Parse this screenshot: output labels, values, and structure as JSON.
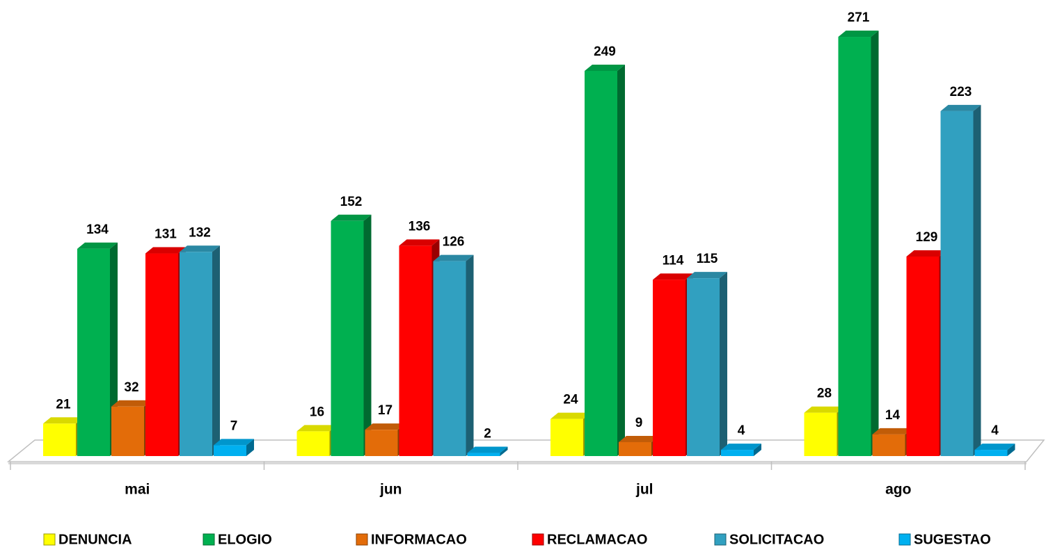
{
  "chart_data": {
    "type": "bar3d",
    "categories": [
      "mai",
      "jun",
      "jul",
      "ago"
    ],
    "series": [
      {
        "name": "DENUNCIA",
        "color": "#ffff00",
        "values": [
          21,
          16,
          24,
          28
        ]
      },
      {
        "name": "ELOGIO",
        "color": "#00b050",
        "values": [
          134,
          152,
          249,
          271
        ]
      },
      {
        "name": "INFORMACAO",
        "color": "#e36c09",
        "values": [
          32,
          17,
          9,
          14
        ]
      },
      {
        "name": "RECLAMACAO",
        "color": "#ff0000",
        "values": [
          131,
          136,
          114,
          129
        ]
      },
      {
        "name": "SOLICITACAO",
        "color": "#31a0c0",
        "values": [
          132,
          126,
          115,
          223
        ]
      },
      {
        "name": "SUGESTAO",
        "color": "#00b0f0",
        "values": [
          7,
          2,
          4,
          4
        ]
      }
    ],
    "legend": "bottom"
  }
}
